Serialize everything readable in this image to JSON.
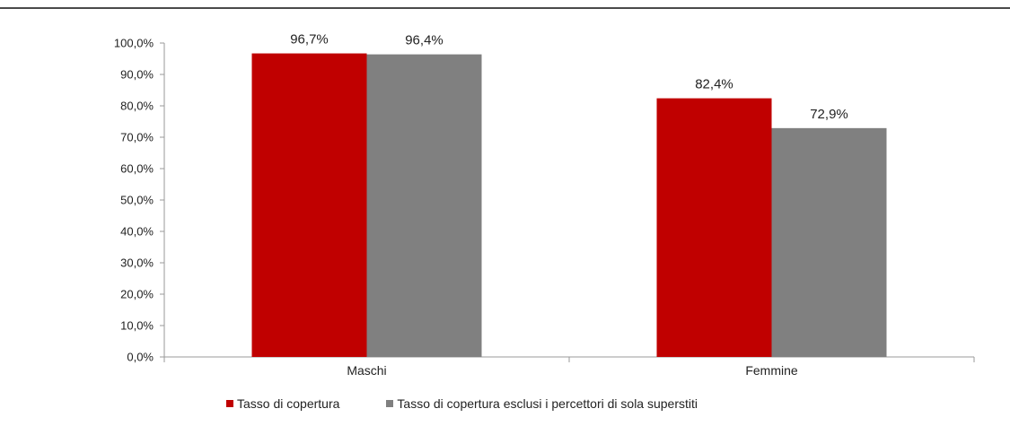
{
  "chart_data": {
    "type": "bar",
    "categories": [
      "Maschi",
      "Femmine"
    ],
    "series": [
      {
        "name": "Tasso di copertura",
        "color": "#c00000",
        "values": [
          96.7,
          82.4
        ],
        "labels": [
          "96,7%",
          "82,4%"
        ]
      },
      {
        "name": "Tasso di copertura esclusi i percettori di sola superstiti",
        "color": "#808080",
        "values": [
          96.4,
          72.9
        ],
        "labels": [
          "96,4%",
          "72,9%"
        ]
      }
    ],
    "ylim": [
      0,
      100
    ],
    "yticks": [
      0,
      10,
      20,
      30,
      40,
      50,
      60,
      70,
      80,
      90,
      100
    ],
    "ytick_labels": [
      "0,0%",
      "10,0%",
      "20,0%",
      "30,0%",
      "40,0%",
      "50,0%",
      "60,0%",
      "70,0%",
      "80,0%",
      "90,0%",
      "100,0%"
    ],
    "title": "",
    "xlabel": "",
    "ylabel": "",
    "grid": false,
    "legend_position": "bottom"
  }
}
